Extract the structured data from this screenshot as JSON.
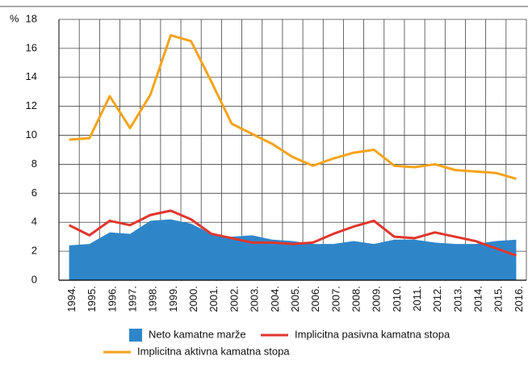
{
  "chart_data": {
    "type": "area_line",
    "unit_label": "%",
    "categories": [
      "1994.",
      "1995.",
      "1996.",
      "1997.",
      "1998.",
      "1999.",
      "2000.",
      "2001.",
      "2002.",
      "2003.",
      "2004.",
      "2005.",
      "2006.",
      "2007.",
      "2008.",
      "2009.",
      "2010.",
      "2011.",
      "2012.",
      "2013.",
      "2014.",
      "2015.",
      "2016."
    ],
    "series": [
      {
        "name": "Neto kamatne marže",
        "kind": "area",
        "color": "#2e86c9",
        "values": [
          2.4,
          2.5,
          3.3,
          3.2,
          4.1,
          4.2,
          3.9,
          3.2,
          3.0,
          3.1,
          2.8,
          2.7,
          2.5,
          2.5,
          2.7,
          2.5,
          2.8,
          2.8,
          2.6,
          2.5,
          2.5,
          2.7,
          2.8
        ]
      },
      {
        "name": "Implicitna pasivna kamatna stopa",
        "kind": "line",
        "color": "#e0362c",
        "values": [
          3.8,
          3.1,
          4.1,
          3.8,
          4.5,
          4.8,
          4.2,
          3.2,
          2.9,
          2.6,
          2.6,
          2.5,
          2.6,
          3.2,
          3.7,
          4.1,
          3.0,
          2.9,
          3.3,
          3.0,
          2.7,
          2.2,
          1.7
        ]
      },
      {
        "name": "Implicitna aktivna kamatna stopa",
        "kind": "line",
        "color": "#f5a31a",
        "values": [
          9.7,
          9.8,
          12.7,
          10.5,
          12.8,
          16.9,
          16.5,
          13.7,
          10.8,
          10.1,
          9.4,
          8.5,
          7.9,
          8.4,
          8.8,
          9.0,
          7.9,
          7.8,
          8.0,
          7.6,
          7.5,
          7.4,
          7.0
        ]
      }
    ],
    "ylim": [
      0,
      18
    ],
    "yticks": [
      0,
      2,
      4,
      6,
      8,
      10,
      12,
      14,
      16,
      18
    ],
    "grid": true
  }
}
